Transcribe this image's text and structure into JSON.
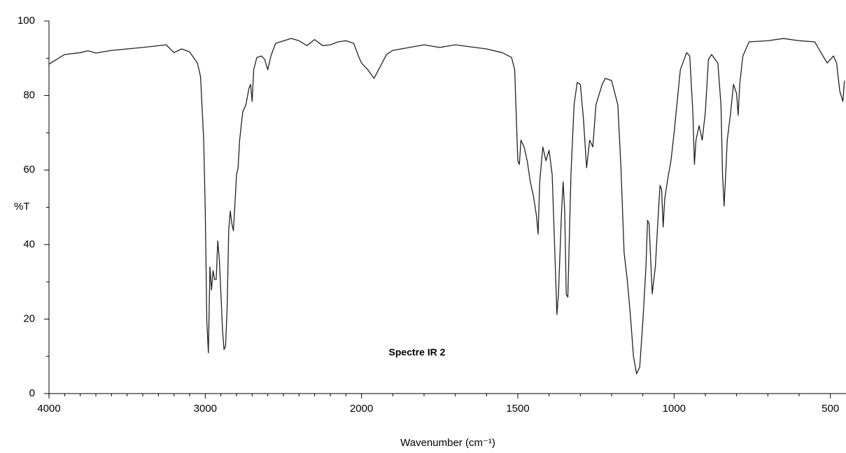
{
  "chart_data": {
    "type": "line",
    "x_label": "Wavenumber (cm⁻¹)",
    "y_label": "%T",
    "annotation": "Spectre IR 2",
    "xlim": [
      4000,
      450
    ],
    "x_break": 2000,
    "x_break_factor": 2,
    "xticks": [
      4000,
      3000,
      2000,
      1500,
      1000,
      500
    ],
    "xticks_minor": [
      3900,
      3800,
      3700,
      3600,
      3500,
      3400,
      3300,
      3200,
      3100,
      2900,
      2800,
      2700,
      2600,
      2500,
      2400,
      2300,
      2200,
      2100,
      1900,
      1800,
      1700,
      1600,
      1400,
      1300,
      1200,
      1100,
      900,
      800,
      700,
      600
    ],
    "ylim": [
      0,
      100
    ],
    "yticks": [
      0,
      20,
      40,
      60,
      80,
      100
    ],
    "yticks_minor": [
      10,
      30,
      50,
      70,
      90
    ],
    "color": "#222222",
    "x": [
      4000,
      3900,
      3800,
      3750,
      3700,
      3600,
      3400,
      3250,
      3200,
      3150,
      3100,
      3050,
      3030,
      3010,
      3000,
      2990,
      2980,
      2970,
      2960,
      2950,
      2940,
      2930,
      2920,
      2910,
      2900,
      2890,
      2880,
      2870,
      2860,
      2850,
      2840,
      2830,
      2820,
      2810,
      2800,
      2790,
      2780,
      2770,
      2760,
      2740,
      2720,
      2710,
      2700,
      2690,
      2670,
      2640,
      2620,
      2600,
      2580,
      2550,
      2450,
      2400,
      2350,
      2300,
      2250,
      2200,
      2150,
      2100,
      2050,
      2020,
      2000,
      1980,
      1960,
      1940,
      1920,
      1900,
      1800,
      1750,
      1700,
      1600,
      1550,
      1520,
      1510,
      1500,
      1495,
      1490,
      1480,
      1470,
      1460,
      1450,
      1440,
      1435,
      1430,
      1420,
      1410,
      1400,
      1390,
      1380,
      1375,
      1370,
      1360,
      1355,
      1350,
      1345,
      1340,
      1330,
      1320,
      1310,
      1300,
      1290,
      1280,
      1270,
      1260,
      1250,
      1230,
      1220,
      1200,
      1180,
      1170,
      1160,
      1150,
      1140,
      1130,
      1120,
      1110,
      1100,
      1090,
      1085,
      1080,
      1070,
      1060,
      1050,
      1045,
      1040,
      1035,
      1030,
      1020,
      1010,
      1000,
      980,
      960,
      950,
      940,
      935,
      930,
      920,
      910,
      900,
      890,
      880,
      860,
      850,
      845,
      840,
      835,
      830,
      820,
      810,
      800,
      795,
      790,
      780,
      760,
      700,
      650,
      600,
      550,
      530,
      510,
      490,
      480,
      470,
      460,
      455
    ],
    "values": [
      88.4,
      91,
      91.5,
      92,
      91.4,
      92.1,
      92.9,
      93.6,
      91.5,
      92.5,
      91.7,
      88.7,
      85,
      68,
      49,
      19.3,
      10.9,
      34,
      27.8,
      33,
      30.6,
      30.6,
      41,
      36,
      27,
      17.4,
      11.8,
      12.8,
      23,
      43.7,
      49,
      45.6,
      43.7,
      51,
      58.7,
      60.6,
      68,
      71.9,
      75.6,
      77.5,
      82,
      83,
      78.4,
      86.9,
      90.2,
      90.6,
      89.7,
      86.9,
      90.6,
      94,
      95.3,
      94.7,
      93.4,
      95,
      93.4,
      93.6,
      94.4,
      94.7,
      94,
      90.6,
      88.7,
      86.9,
      84.6,
      87.8,
      91,
      92.1,
      93.6,
      92.9,
      93.6,
      92.5,
      91.5,
      90.2,
      86.9,
      62.5,
      61.5,
      68,
      66.2,
      62.5,
      56.8,
      53,
      47.5,
      42.8,
      56.8,
      66.2,
      62.5,
      65.3,
      58.7,
      34,
      21.2,
      26.6,
      49,
      56.8,
      49,
      26.6,
      25.9,
      58.7,
      77.5,
      83.5,
      83,
      73.7,
      60.6,
      68,
      66.2,
      77.5,
      83,
      84.6,
      84,
      77.5,
      60.6,
      37.9,
      30.6,
      21.2,
      10,
      5.3,
      7.1,
      19.3,
      34,
      46.5,
      45.6,
      26.8,
      34,
      49,
      55.9,
      54.8,
      44.7,
      52.2,
      57.8,
      62.5,
      70,
      86.9,
      91.5,
      90.6,
      75.6,
      61.5,
      68,
      71.9,
      68,
      75.6,
      89.7,
      91,
      88.7,
      77.5,
      58.7,
      50.3,
      58.7,
      68,
      74.7,
      83,
      80.5,
      74.7,
      83,
      90.6,
      94.4,
      94.7,
      95.3,
      94.7,
      94.4,
      91.5,
      88.7,
      90.6,
      88.7,
      81.2,
      78.4,
      84
    ]
  }
}
